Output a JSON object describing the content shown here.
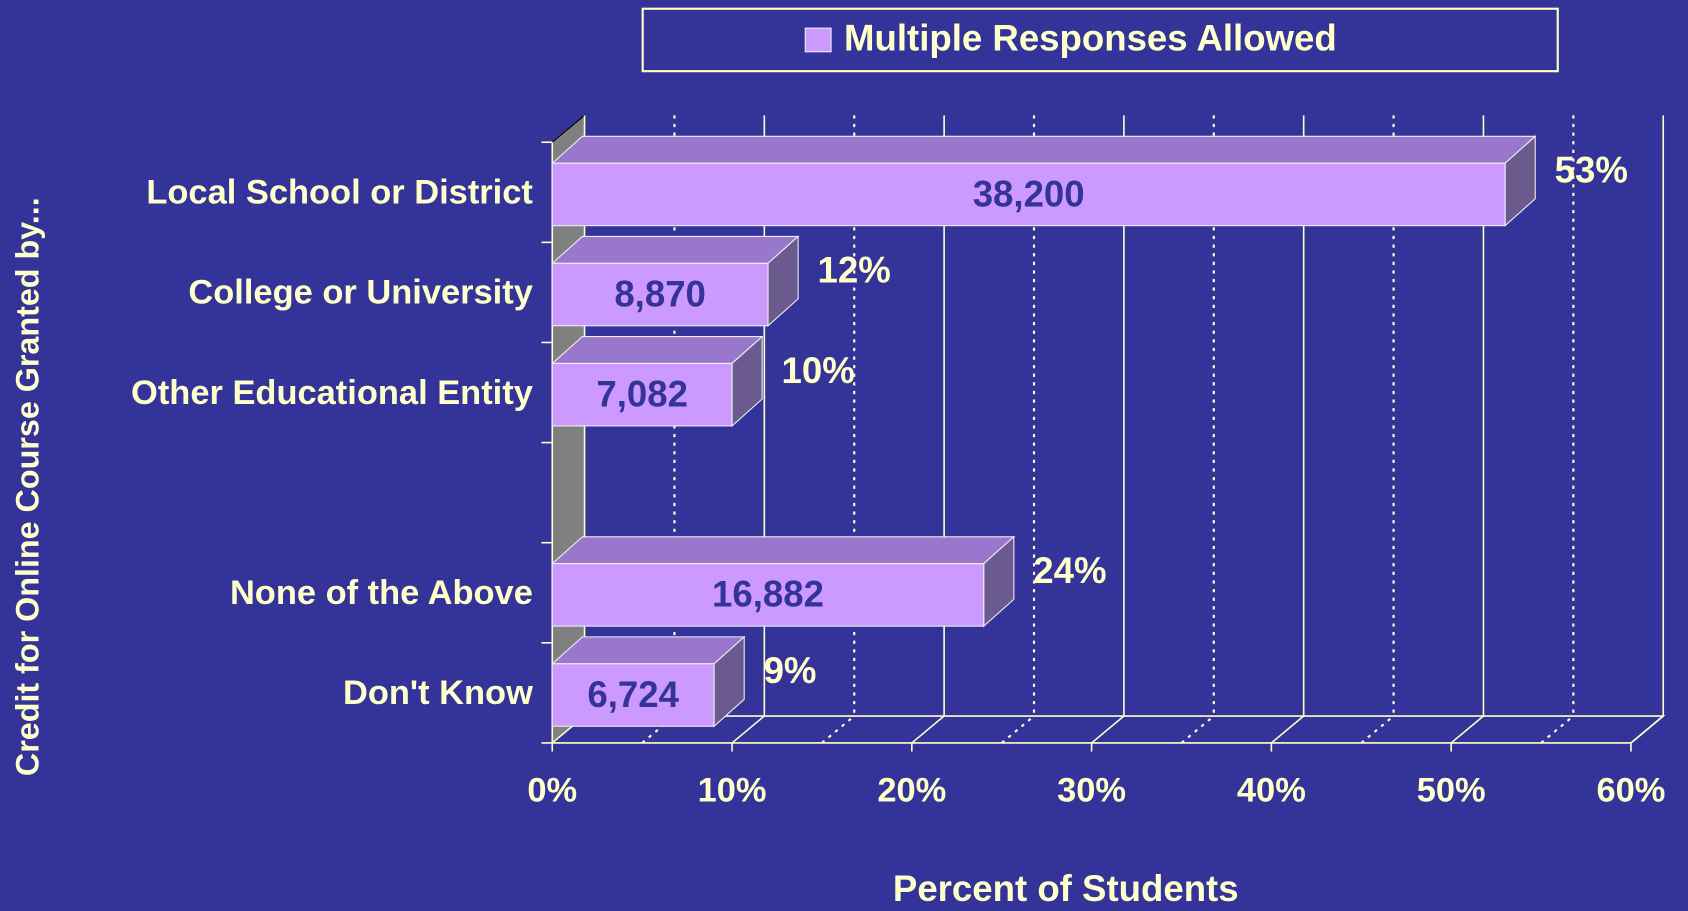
{
  "chart_data": {
    "type": "bar3d_horizontal",
    "categories": [
      "Local School or District",
      "College or University",
      "Other Educational Entity",
      null,
      "None of the Above",
      "Don't Know"
    ],
    "series": [
      {
        "name": "Multiple Responses Allowed",
        "color": "#cc99ff",
        "values": [
          53,
          12,
          10,
          null,
          24,
          9
        ],
        "value_labels": [
          "53%",
          "12%",
          "10%",
          null,
          "24%",
          "9%"
        ],
        "counts": [
          38200,
          8870,
          7082,
          null,
          16882,
          6724
        ],
        "count_labels": [
          "38,200",
          "8,870",
          "7,082",
          null,
          "16,882",
          "6,724"
        ]
      }
    ],
    "xlabel": "Percent of Students",
    "ylabel": "Credit for Online Course Granted by...",
    "xlim": [
      0,
      60
    ],
    "xticks": [
      {
        "value": 0,
        "label": "0%"
      },
      {
        "value": 10,
        "label": "10%"
      },
      {
        "value": 20,
        "label": "20%"
      },
      {
        "value": 30,
        "label": "30%"
      },
      {
        "value": 40,
        "label": "40%"
      },
      {
        "value": 50,
        "label": "50%"
      },
      {
        "value": 60,
        "label": "60%"
      }
    ],
    "grid": true,
    "legend": "top"
  }
}
